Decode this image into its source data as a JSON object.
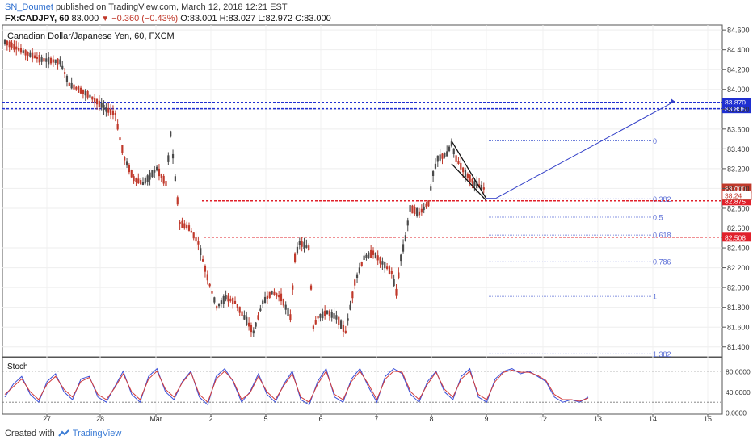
{
  "header": {
    "author": "SN_Doumet",
    "published_text": "published on TradingView.com, March 12, 2018 12:21 EST",
    "symbol_line": "FX:CADJPY, 60",
    "last_price": "83.000",
    "change_arrow": "▼",
    "change": "−0.360 (−0.43%)",
    "ohlc": "O:83.001 H:83.027 L:82.972 C:83.000"
  },
  "footer": {
    "created_with": "Created with",
    "brand": "TradingView"
  },
  "chart_data": [
    {
      "type": "candlestick",
      "title": "Canadian Dollar/Japanese Yen, 60, FXCM",
      "x_ticks": [
        "27",
        "28",
        "Mar",
        "2",
        "5",
        "6",
        "7",
        "8",
        "9",
        "12",
        "13",
        "14",
        "15"
      ],
      "y_ticks": [
        "84.600",
        "84.400",
        "84.200",
        "84.000",
        "83.800",
        "83.600",
        "83.400",
        "83.200",
        "83.000",
        "82.800",
        "82.600",
        "82.400",
        "82.200",
        "82.000",
        "81.800",
        "81.600",
        "81.400"
      ],
      "ylim": [
        81.3,
        84.65
      ],
      "grid": true,
      "colors": {
        "up": "#4a4a4a",
        "down": "#c0392b",
        "blue_line": "#1f2fd1",
        "red_line": "#e0202a",
        "fib": "#5b6ed6"
      },
      "price_path": [
        {
          "x": 0,
          "y": 84.48
        },
        {
          "x": 4,
          "y": 84.38
        },
        {
          "x": 8,
          "y": 84.3
        },
        {
          "x": 12,
          "y": 84.28
        },
        {
          "x": 14,
          "y": 84.05
        },
        {
          "x": 18,
          "y": 83.95
        },
        {
          "x": 22,
          "y": 83.8
        },
        {
          "x": 24,
          "y": 83.75
        },
        {
          "x": 25,
          "y": 83.5
        },
        {
          "x": 26,
          "y": 83.3
        },
        {
          "x": 28,
          "y": 83.1
        },
        {
          "x": 30,
          "y": 83.05
        },
        {
          "x": 33,
          "y": 83.2
        },
        {
          "x": 35,
          "y": 83.05
        },
        {
          "x": 36,
          "y": 83.55
        },
        {
          "x": 37,
          "y": 83.1
        },
        {
          "x": 38,
          "y": 82.65
        },
        {
          "x": 40,
          "y": 82.6
        },
        {
          "x": 42,
          "y": 82.45
        },
        {
          "x": 44,
          "y": 82.1
        },
        {
          "x": 46,
          "y": 81.8
        },
        {
          "x": 48,
          "y": 81.9
        },
        {
          "x": 50,
          "y": 81.85
        },
        {
          "x": 52,
          "y": 81.7
        },
        {
          "x": 54,
          "y": 81.55
        },
        {
          "x": 56,
          "y": 81.85
        },
        {
          "x": 58,
          "y": 81.95
        },
        {
          "x": 60,
          "y": 81.9
        },
        {
          "x": 62,
          "y": 81.7
        },
        {
          "x": 63,
          "y": 82.3
        },
        {
          "x": 64,
          "y": 82.45
        },
        {
          "x": 66,
          "y": 82.4
        },
        {
          "x": 67,
          "y": 81.6
        },
        {
          "x": 68,
          "y": 81.7
        },
        {
          "x": 70,
          "y": 81.75
        },
        {
          "x": 72,
          "y": 81.7
        },
        {
          "x": 74,
          "y": 81.55
        },
        {
          "x": 76,
          "y": 82.05
        },
        {
          "x": 78,
          "y": 82.3
        },
        {
          "x": 80,
          "y": 82.35
        },
        {
          "x": 82,
          "y": 82.25
        },
        {
          "x": 84,
          "y": 82.15
        },
        {
          "x": 85,
          "y": 81.95
        },
        {
          "x": 86,
          "y": 82.3
        },
        {
          "x": 87,
          "y": 82.5
        },
        {
          "x": 88,
          "y": 82.8
        },
        {
          "x": 90,
          "y": 82.75
        },
        {
          "x": 92,
          "y": 82.85
        },
        {
          "x": 93,
          "y": 83.15
        },
        {
          "x": 94,
          "y": 83.3
        },
        {
          "x": 96,
          "y": 83.35
        },
        {
          "x": 97,
          "y": 83.45
        },
        {
          "x": 98,
          "y": 83.3
        },
        {
          "x": 100,
          "y": 83.15
        },
        {
          "x": 102,
          "y": 83.05
        },
        {
          "x": 104,
          "y": 83.0
        }
      ],
      "horizontal_lines": [
        {
          "value": 83.87,
          "label": "83.870",
          "color": "blue"
        },
        {
          "value": 83.805,
          "label": "83.805",
          "color": "blue"
        },
        {
          "value": 82.875,
          "label": "82.875",
          "color": "red"
        },
        {
          "value": 82.508,
          "label": "82.508",
          "color": "red"
        }
      ],
      "price_labels": [
        {
          "value": 83.0,
          "label": "83.000"
        },
        {
          "value": 82.93,
          "label": "38:24"
        }
      ],
      "fib_levels": [
        {
          "level": "0",
          "value": 83.48
        },
        {
          "level": "0.382",
          "value": 82.895
        },
        {
          "level": "0.5",
          "value": 82.71
        },
        {
          "level": "0.618",
          "value": 82.53
        },
        {
          "level": "0.786",
          "value": 82.26
        },
        {
          "level": "1",
          "value": 81.91
        },
        {
          "level": "1.382",
          "value": 81.33
        }
      ],
      "wedge": {
        "upper": [
          {
            "x": 97,
            "y": 83.48
          },
          {
            "x": 104.5,
            "y": 82.9
          }
        ],
        "lower": [
          {
            "x": 97,
            "y": 83.25
          },
          {
            "x": 104.5,
            "y": 82.88
          }
        ]
      },
      "projection": [
        {
          "x": 104.5,
          "y": 82.9
        },
        {
          "x": 116,
          "y": 83.88
        }
      ]
    },
    {
      "type": "line",
      "title": "Stoch",
      "y_ticks": [
        "80.0000",
        "40.0000",
        "0.0000"
      ],
      "ylim": [
        0,
        100
      ],
      "levels": [
        80,
        20
      ],
      "series": [
        {
          "color": "#3b4fd8",
          "values": [
            30,
            55,
            70,
            35,
            20,
            60,
            75,
            40,
            25,
            65,
            70,
            30,
            20,
            50,
            80,
            35,
            20,
            70,
            85,
            40,
            25,
            60,
            80,
            30,
            15,
            70,
            85,
            60,
            20,
            40,
            75,
            35,
            20,
            55,
            80,
            25,
            15,
            60,
            85,
            30,
            20,
            65,
            85,
            50,
            20,
            70,
            85,
            75,
            35,
            20,
            60,
            80,
            40,
            25,
            70,
            85,
            30,
            20,
            65,
            80,
            85,
            75,
            80,
            70,
            60,
            30,
            20,
            25,
            20,
            30
          ]
        },
        {
          "color": "#d13b3b",
          "values": [
            35,
            50,
            65,
            40,
            25,
            55,
            70,
            45,
            30,
            60,
            68,
            35,
            25,
            48,
            75,
            40,
            25,
            65,
            80,
            45,
            30,
            58,
            78,
            35,
            20,
            65,
            80,
            62,
            25,
            38,
            70,
            40,
            25,
            52,
            75,
            30,
            20,
            55,
            80,
            35,
            25,
            60,
            80,
            55,
            25,
            65,
            80,
            78,
            40,
            25,
            55,
            78,
            45,
            30,
            65,
            80,
            35,
            25,
            60,
            78,
            82,
            78,
            78,
            72,
            62,
            35,
            25,
            25,
            22,
            28
          ]
        }
      ]
    }
  ]
}
